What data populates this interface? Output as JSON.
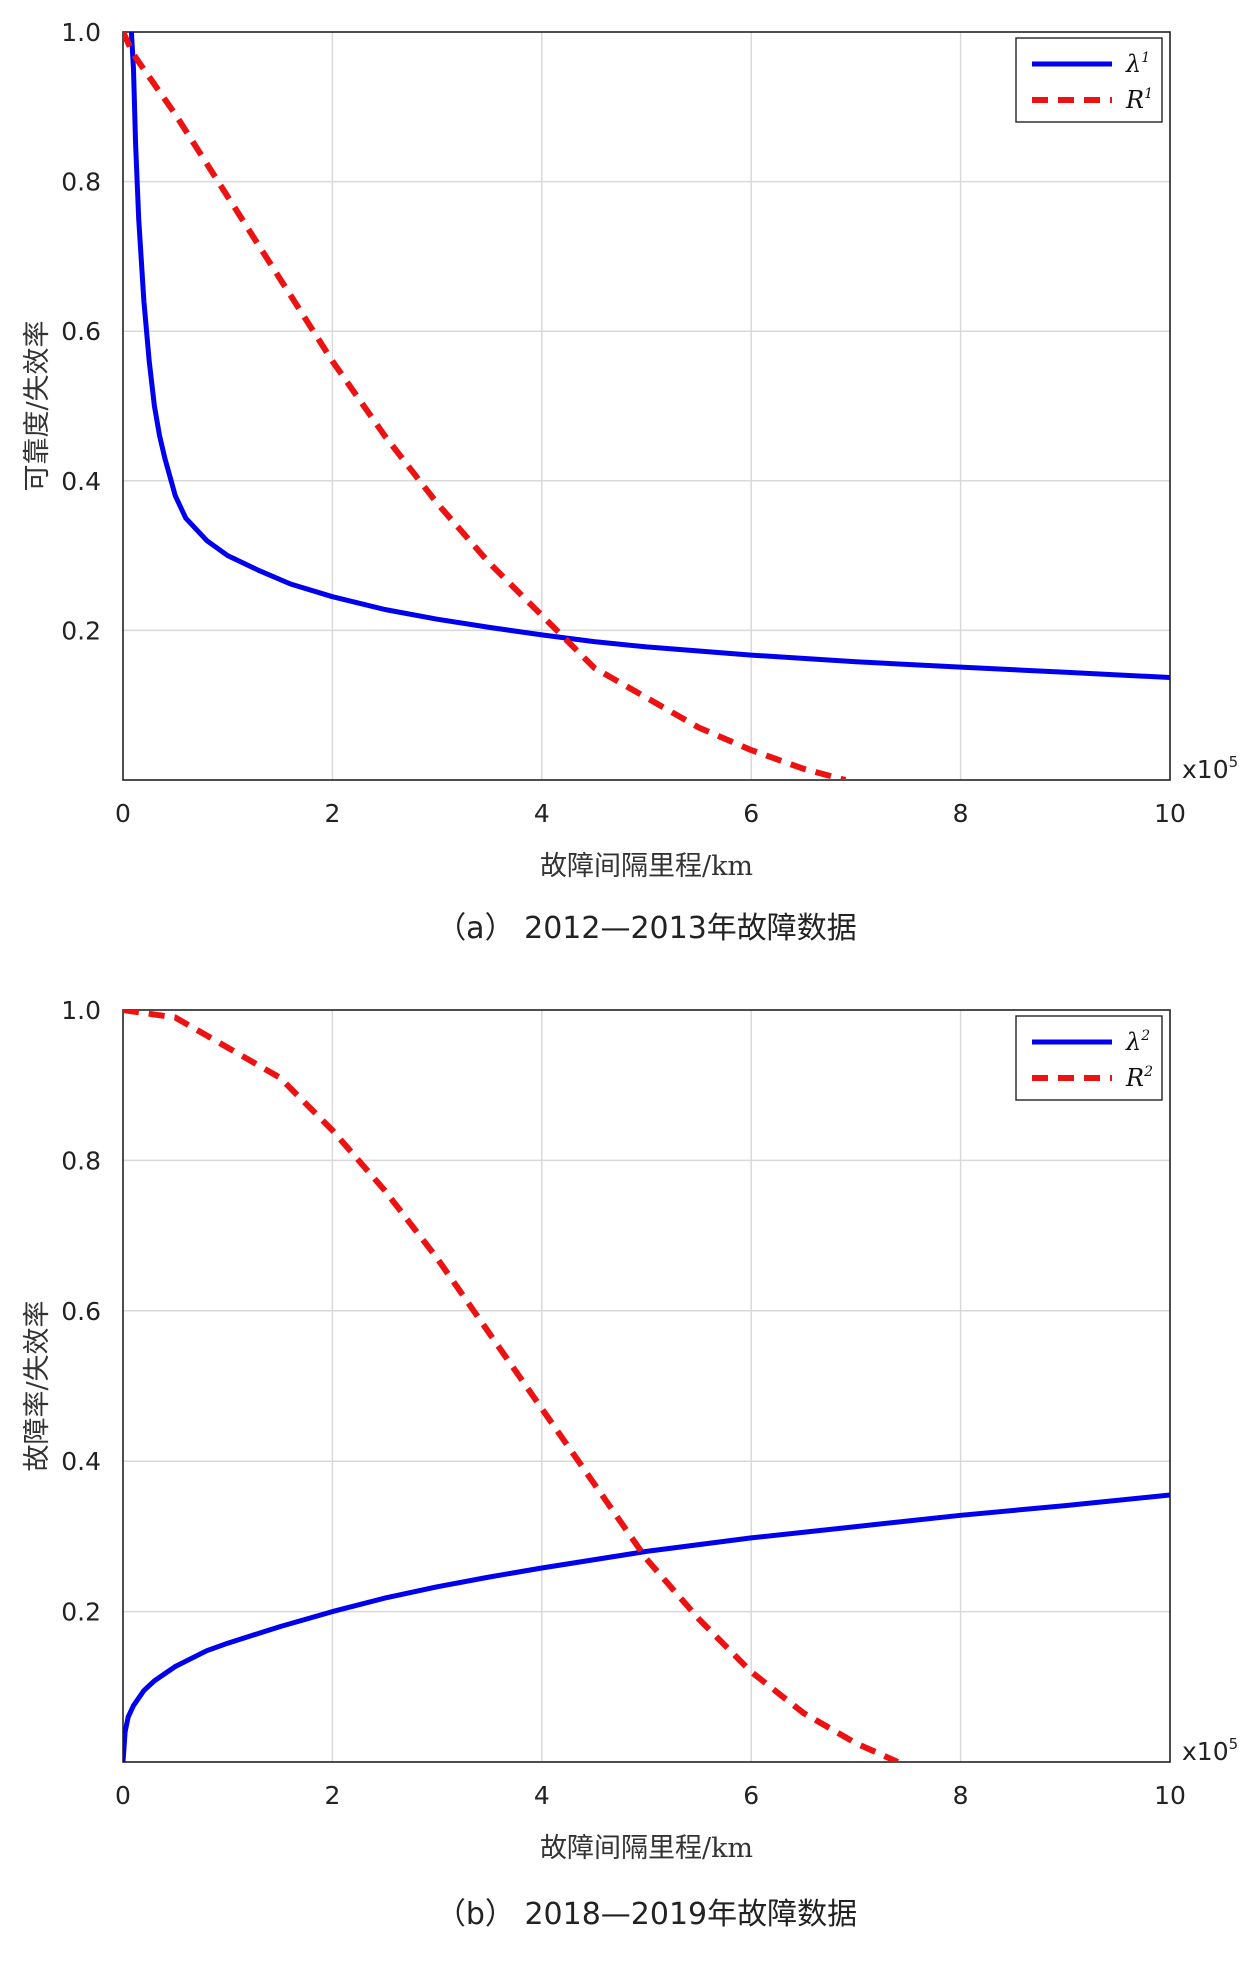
{
  "chart_data": [
    {
      "type": "line",
      "panel": "a",
      "caption": "（a） 2012—2013年故障数据",
      "xlabel": "故障间隔里程/km",
      "ylabel": "可靠度/失效率",
      "x_tick_labels": [
        "0",
        "2",
        "4",
        "6",
        "8",
        "10"
      ],
      "x_multiplier_label": "x10",
      "x_multiplier_exp": "5",
      "y_tick_labels": [
        "0.2",
        "0.4",
        "0.6",
        "0.8",
        "1.0"
      ],
      "xlim": [
        0,
        10
      ],
      "ylim": [
        0,
        1.0
      ],
      "grid": true,
      "legend_position": "top-right",
      "series": [
        {
          "name": "λ",
          "name_sup": "1",
          "color": "#0000ee",
          "style": "solid",
          "x": [
            0.08,
            0.1,
            0.12,
            0.15,
            0.2,
            0.25,
            0.3,
            0.35,
            0.4,
            0.5,
            0.6,
            0.8,
            1.0,
            1.3,
            1.6,
            2.0,
            2.5,
            3.0,
            3.5,
            4.0,
            4.5,
            5.0,
            6.0,
            7.0,
            8.0,
            9.0,
            10.0
          ],
          "y": [
            1.0,
            0.95,
            0.85,
            0.75,
            0.64,
            0.56,
            0.5,
            0.46,
            0.43,
            0.38,
            0.35,
            0.32,
            0.3,
            0.28,
            0.262,
            0.245,
            0.228,
            0.215,
            0.204,
            0.194,
            0.185,
            0.178,
            0.167,
            0.158,
            0.151,
            0.144,
            0.137
          ]
        },
        {
          "name": "R",
          "name_sup": "1",
          "color": "#ee1111",
          "style": "dashed",
          "x": [
            0.0,
            0.1,
            0.5,
            1.0,
            1.5,
            2.0,
            2.5,
            3.0,
            3.5,
            4.0,
            4.5,
            5.0,
            5.5,
            6.0,
            6.5,
            6.9
          ],
          "y": [
            1.0,
            0.97,
            0.89,
            0.78,
            0.67,
            0.56,
            0.46,
            0.37,
            0.29,
            0.22,
            0.15,
            0.11,
            0.07,
            0.04,
            0.015,
            0.0
          ]
        }
      ]
    },
    {
      "type": "line",
      "panel": "b",
      "caption": "（b） 2018—2019年故障数据",
      "xlabel": "故障间隔里程/km",
      "ylabel": "故障率/失效率",
      "x_tick_labels": [
        "0",
        "2",
        "4",
        "6",
        "8",
        "10"
      ],
      "x_multiplier_label": "x10",
      "x_multiplier_exp": "5",
      "y_tick_labels": [
        "0.2",
        "0.4",
        "0.6",
        "0.8",
        "1.0"
      ],
      "xlim": [
        0,
        10
      ],
      "ylim": [
        0,
        1.0
      ],
      "grid": true,
      "legend_position": "top-right",
      "series": [
        {
          "name": "λ",
          "name_sup": "2",
          "color": "#0000ee",
          "style": "solid",
          "x": [
            0.0,
            0.02,
            0.05,
            0.1,
            0.2,
            0.3,
            0.5,
            0.8,
            1.0,
            1.5,
            2.0,
            2.5,
            3.0,
            3.5,
            4.0,
            5.0,
            6.0,
            7.0,
            8.0,
            9.0,
            10.0
          ],
          "y": [
            0.0,
            0.04,
            0.06,
            0.075,
            0.095,
            0.108,
            0.127,
            0.148,
            0.158,
            0.18,
            0.2,
            0.218,
            0.233,
            0.246,
            0.258,
            0.28,
            0.298,
            0.313,
            0.328,
            0.341,
            0.355
          ]
        },
        {
          "name": "R",
          "name_sup": "2",
          "color": "#ee1111",
          "style": "dashed",
          "x": [
            0.0,
            0.5,
            1.0,
            1.5,
            2.0,
            2.5,
            3.0,
            3.5,
            4.0,
            4.5,
            5.0,
            5.5,
            6.0,
            6.5,
            7.0,
            7.4
          ],
          "y": [
            1.0,
            0.99,
            0.95,
            0.91,
            0.84,
            0.76,
            0.67,
            0.57,
            0.47,
            0.37,
            0.27,
            0.19,
            0.12,
            0.065,
            0.025,
            0.0
          ]
        }
      ]
    }
  ]
}
